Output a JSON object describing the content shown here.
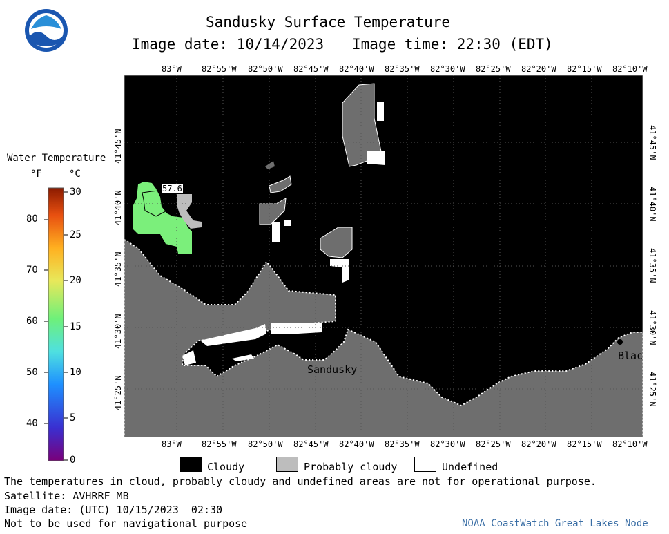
{
  "title": "Sandusky Surface Temperature",
  "image_date_line": "Image date: 10/14/2023",
  "image_time_line": "Image time: 22:30 (EDT)",
  "logo_text": "NOAA",
  "colorbar": {
    "title": "Water Temperature",
    "unit_f": "°F",
    "unit_c": "°C",
    "f_ticks": [
      "80",
      "70",
      "60",
      "50",
      "40"
    ],
    "c_ticks": [
      "30",
      "25",
      "20",
      "15",
      "10",
      "5",
      "0"
    ]
  },
  "lon_labels": [
    "83°W",
    "82°55'W",
    "82°50'W",
    "82°45'W",
    "82°40'W",
    "82°35'W",
    "82°30'W",
    "82°25'W",
    "82°20'W",
    "82°15'W",
    "82°10'W"
  ],
  "lat_labels": [
    "41°45'N",
    "41°40'N",
    "41°35'N",
    "41°30'N",
    "41°25'N"
  ],
  "map_labels": {
    "contour": "57.6",
    "city_sandusky": "Sandusky",
    "city_blac": "Blac"
  },
  "legend": {
    "cloudy": "Cloudy",
    "probably_cloudy": "Probably cloudy",
    "undefined": "Undefined"
  },
  "footer": {
    "disclaimer": "The temperatures in cloud, probably cloudy and undefined areas are not for operational purpose.",
    "satellite": "Satellite: AVHRRF_MB",
    "utc_date": "Image date: (UTC) 10/15/2023  02:30",
    "nav_warning": "Not to be used for navigational purpose",
    "credit": "NOAA CoastWatch Great Lakes Node"
  },
  "colors": {
    "cloudy": "#000000",
    "probably_cloudy": "#bdbdbd",
    "land": "#6e6e6e",
    "undefined": "#ffffff",
    "water_temp": "#7bef7b",
    "credit": "#3a6ea5"
  }
}
